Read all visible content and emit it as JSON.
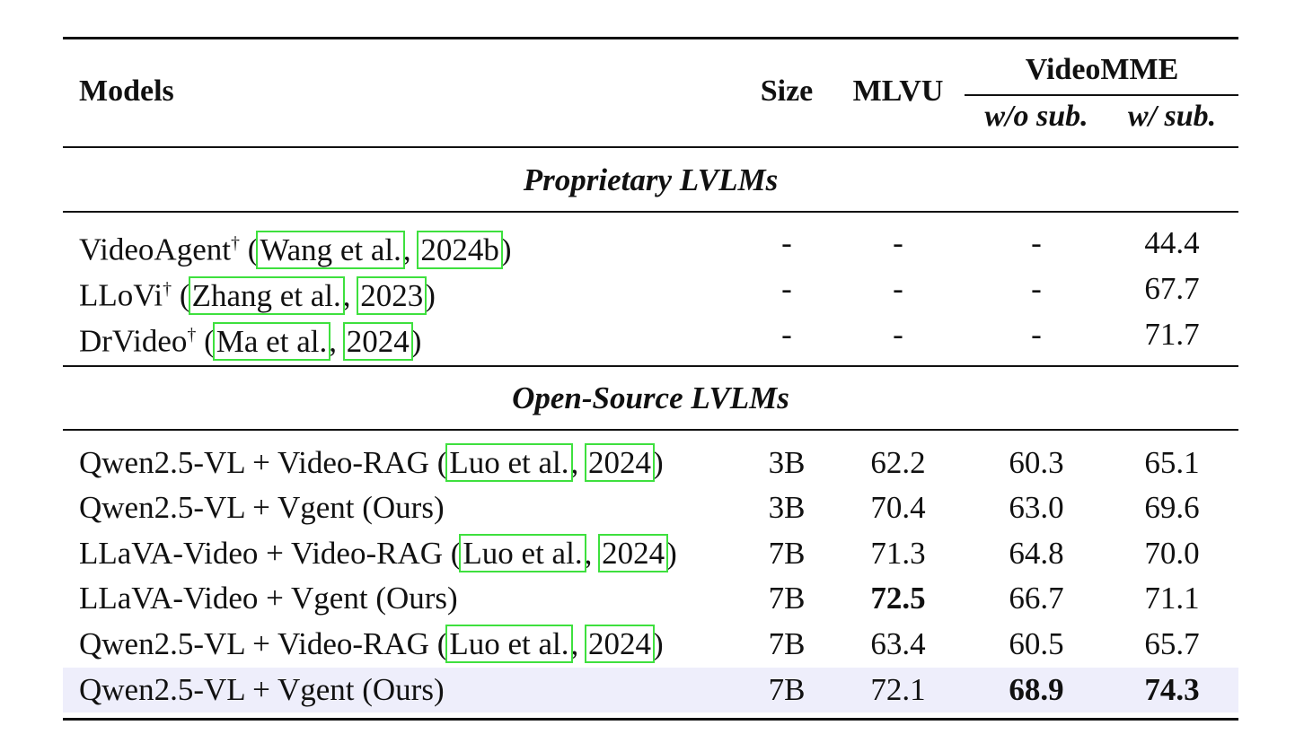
{
  "header": {
    "models": "Models",
    "size": "Size",
    "mlvu": "MLVU",
    "videomme": "VideoMME",
    "wo_sub": "w/o sub.",
    "w_sub": "w/ sub."
  },
  "sections": {
    "proprietary": "Proprietary LVLMs",
    "open_source": "Open-Source LVLMs"
  },
  "proprietary_rows": [
    {
      "name": "VideoAgent",
      "dagger": "†",
      "cite_author": "Wang et al.",
      "cite_year": "2024b",
      "size": "-",
      "mlvu": "-",
      "wo": "-",
      "w": "44.4"
    },
    {
      "name": "LLoVi",
      "dagger": "†",
      "cite_author": "Zhang et al.",
      "cite_year": "2023",
      "size": "-",
      "mlvu": "-",
      "wo": "-",
      "w": "67.7"
    },
    {
      "name": "DrVideo",
      "dagger": "†",
      "cite_author": "Ma et al.",
      "cite_year": "2024",
      "size": "-",
      "mlvu": "-",
      "wo": "-",
      "w": "71.7"
    }
  ],
  "open_rows": [
    {
      "name": "Qwen2.5-VL + Video-RAG",
      "cite_author": "Luo et al.",
      "cite_year": "2024",
      "size": "3B",
      "mlvu": "62.2",
      "wo": "60.3",
      "w": "65.1"
    },
    {
      "name": "Qwen2.5-VL + Vgent (Ours)",
      "size": "3B",
      "mlvu": "70.4",
      "wo": "63.0",
      "w": "69.6"
    },
    {
      "name": "LLaVA-Video + Video-RAG",
      "cite_author": "Luo et al.",
      "cite_year": "2024",
      "size": "7B",
      "mlvu": "71.3",
      "wo": "64.8",
      "w": "70.0"
    },
    {
      "name": "LLaVA-Video + Vgent (Ours)",
      "size": "7B",
      "mlvu": "72.5",
      "wo": "66.7",
      "w": "71.1"
    },
    {
      "name": "Qwen2.5-VL + Video-RAG",
      "cite_author": "Luo et al.",
      "cite_year": "2024",
      "size": "7B",
      "mlvu": "63.4",
      "wo": "60.5",
      "w": "65.7"
    },
    {
      "name": "Qwen2.5-VL + Vgent (Ours)",
      "size": "7B",
      "mlvu": "72.1",
      "wo": "68.9",
      "w": "74.3"
    }
  ],
  "colors": {
    "highlight_row": "#eeeefb",
    "citation_box": "#3ee03e"
  }
}
